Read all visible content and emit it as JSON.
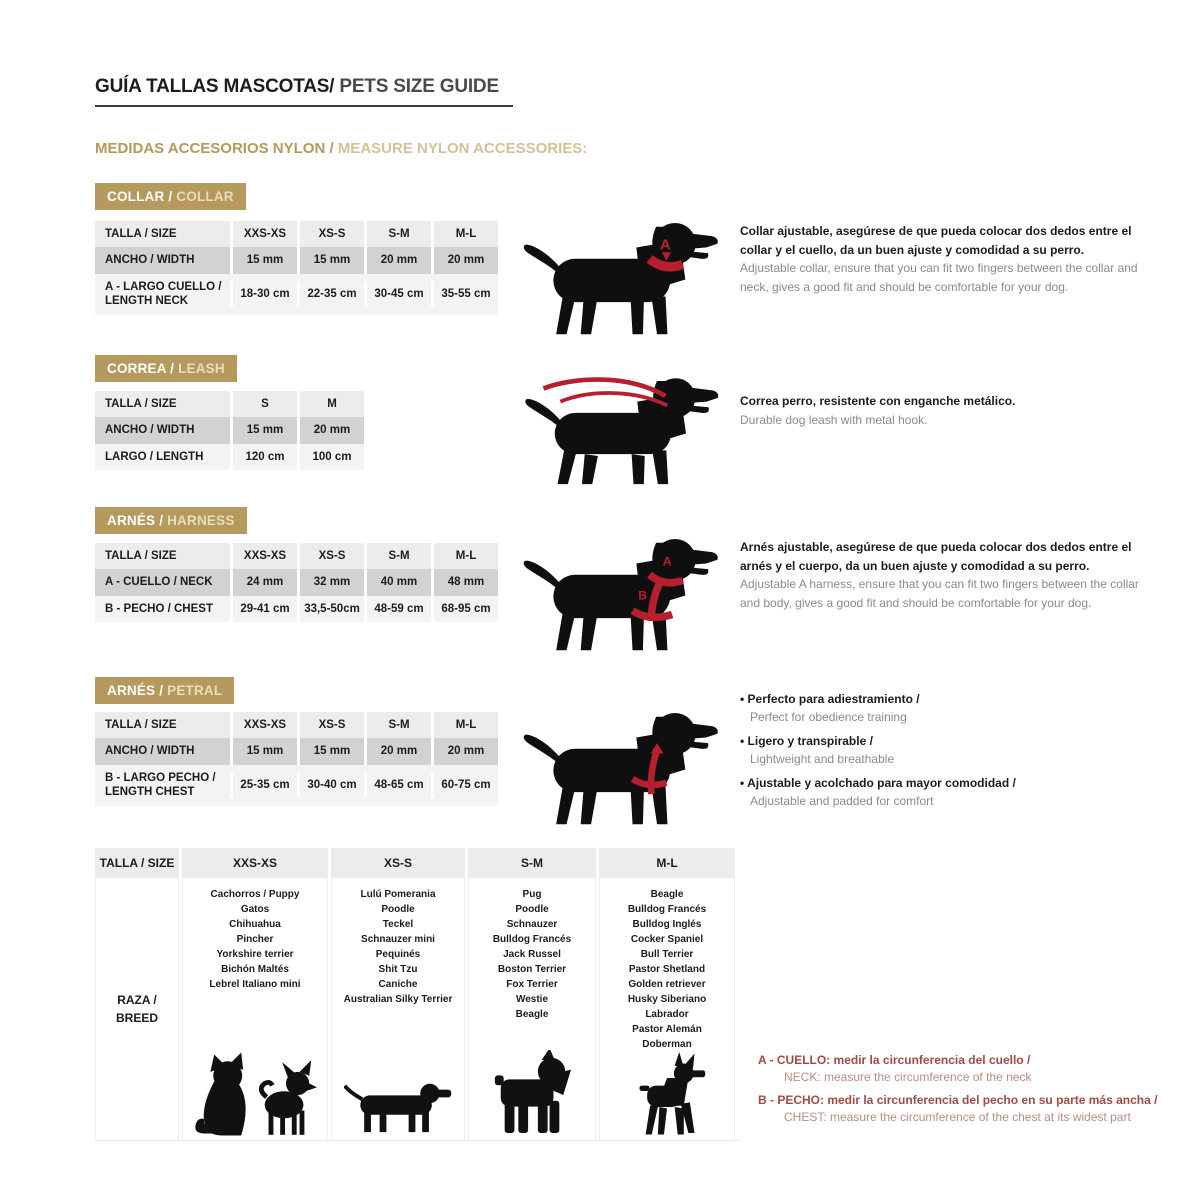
{
  "header": {
    "title_es": "GUÍA TALLAS MASCOTAS/",
    "title_en": " PETS SIZE GUIDE",
    "subtitle_es": "MEDIDAS ACCESORIOS NYLON / ",
    "subtitle_en": "MEASURE NYLON ACCESSORIES:"
  },
  "colors": {
    "accent_tan": "#b5995f",
    "badge_text_light": "#e9ddbb",
    "table_header_gray": "#ececec",
    "table_mid_gray": "#d2d2d2",
    "table_light_gray": "#f3f3f3",
    "marker_red": "#b71f2e",
    "note_red_bold": "#a04b44",
    "note_red_light": "#b98c84",
    "text_black": "#1c1c1c",
    "text_gray": "#8a8a8a"
  },
  "icons": [
    "dog-collar-illustration",
    "dog-leash-illustration",
    "dog-harness-illustration",
    "dog-petral-illustration",
    "cat-silhouette-icon",
    "chihuahua-silhouette-icon",
    "dachshund-silhouette-icon",
    "schnauzer-silhouette-icon",
    "doberman-silhouette-icon"
  ],
  "sections": [
    {
      "badge_es": "COLLAR / ",
      "badge_en": "COLLAR",
      "marker_a": "A",
      "table": {
        "header": [
          "TALLA / SIZE",
          "XXS-XS",
          "XS-S",
          "S-M",
          "M-L"
        ],
        "rows": [
          {
            "label": "ANCHO / WIDTH",
            "values": [
              "15 mm",
              "15 mm",
              "20 mm",
              "20 mm"
            ]
          },
          {
            "label": "A - LARGO CUELLO / LENGTH NECK",
            "values": [
              "18-30 cm",
              "22-35 cm",
              "30-45 cm",
              "35-55 cm"
            ]
          }
        ]
      },
      "description_es": "Collar ajustable, asegúrese de que pueda colocar dos dedos entre el collar y el cuello, da un buen ajuste y comodidad a su perro.",
      "description_en": "Adjustable collar, ensure that you can fit two fingers between the collar and neck, gives a good fit and should be comfortable for your dog."
    },
    {
      "badge_es": "CORREA / ",
      "badge_en": "LEASH",
      "table": {
        "header": [
          "TALLA / SIZE",
          "S",
          "M"
        ],
        "rows": [
          {
            "label": "ANCHO / WIDTH",
            "values": [
              "15 mm",
              "20 mm"
            ]
          },
          {
            "label": "LARGO / LENGTH",
            "values": [
              "120 cm",
              "100 cm"
            ]
          }
        ]
      },
      "description_es": "Correa perro, resistente con enganche metálico.",
      "description_en": "Durable dog leash with metal hook."
    },
    {
      "badge_es": "ARNÉS / ",
      "badge_en": "HARNESS",
      "marker_a": "A",
      "marker_b": "B",
      "table": {
        "header": [
          "TALLA / SIZE",
          "XXS-XS",
          "XS-S",
          "S-M",
          "M-L"
        ],
        "rows": [
          {
            "label": "A - CUELLO / NECK",
            "values": [
              "24 mm",
              "32 mm",
              "40 mm",
              "48 mm"
            ]
          },
          {
            "label": "B - PECHO / CHEST",
            "values": [
              "29-41 cm",
              "33,5-50cm",
              "48-59 cm",
              "68-95 cm"
            ]
          }
        ]
      },
      "description_es": "Arnés ajustable, asegúrese de que pueda colocar dos dedos entre el arnés y el cuerpo, da un buen ajuste y comodidad a su perro.",
      "description_en": "Adjustable A harness, ensure that you can fit two fingers between the collar and body, gives a good fit and should be comfortable for your dog."
    },
    {
      "badge_es": "ARNÉS / ",
      "badge_en": "PETRAL",
      "table": {
        "header": [
          "TALLA / SIZE",
          "XXS-XS",
          "XS-S",
          "S-M",
          "M-L"
        ],
        "rows": [
          {
            "label": "ANCHO / WIDTH",
            "values": [
              "15 mm",
              "15 mm",
              "20 mm",
              "20 mm"
            ]
          },
          {
            "label": "B - LARGO PECHO / LENGTH CHEST",
            "values": [
              "25-35 cm",
              "30-40 cm",
              "48-65 cm",
              "60-75 cm"
            ]
          }
        ]
      },
      "bullets": [
        {
          "es": "Perfecto para adiestramiento /",
          "en": "Perfect for obedience training"
        },
        {
          "es": "Ligero y transpirable /",
          "en": "Lightweight and breathable"
        },
        {
          "es": "Ajustable y acolchado para mayor comodidad /",
          "en": "Adjustable and padded for comfort"
        }
      ]
    }
  ],
  "breed_table": {
    "header": [
      "TALLA /  SIZE",
      "XXS-XS",
      "XS-S",
      "S-M",
      "M-L"
    ],
    "row_label_line1": "RAZA /",
    "row_label_line2": "BREED",
    "columns": [
      {
        "size": "XXS-XS",
        "breeds": [
          "Cachorros / Puppy",
          "Gatos",
          "Chihuahua",
          "Pincher",
          "Yorkshire terrier",
          "Bichón Maltés",
          "Lebrel Italiano mini"
        ]
      },
      {
        "size": "XS-S",
        "breeds": [
          "Lulú Pomerania",
          "Poodle",
          "Teckel",
          "Schnauzer mini",
          "Pequinés",
          "Shit Tzu",
          "Caniche",
          "Australian Silky Terrier"
        ]
      },
      {
        "size": "S-M",
        "breeds": [
          "Pug",
          "Poodle",
          "Schnauzer",
          "Bulldog Francés",
          "Jack Russel",
          "Boston Terrier",
          "Fox Terrier",
          "Westie",
          "Beagle"
        ]
      },
      {
        "size": "M-L",
        "breeds": [
          "Beagle",
          "Bulldog Francés",
          "Bulldog Inglés",
          "Cocker Spaniel",
          "Bull Terrier",
          "Pastor Shetland",
          "Golden retriever",
          "Husky Siberiano",
          "Labrador",
          "Pastor Alemán",
          "Doberman"
        ]
      }
    ]
  },
  "notes": [
    {
      "bold": "A - CUELLO: medir la circunferencia del cuello /",
      "light": "NECK: measure the circumference of the neck"
    },
    {
      "bold": "B - PECHO: medir la circunferencia del pecho en su parte más ancha /",
      "light": "CHEST: measure the circumference of the chest at its widest part"
    }
  ]
}
